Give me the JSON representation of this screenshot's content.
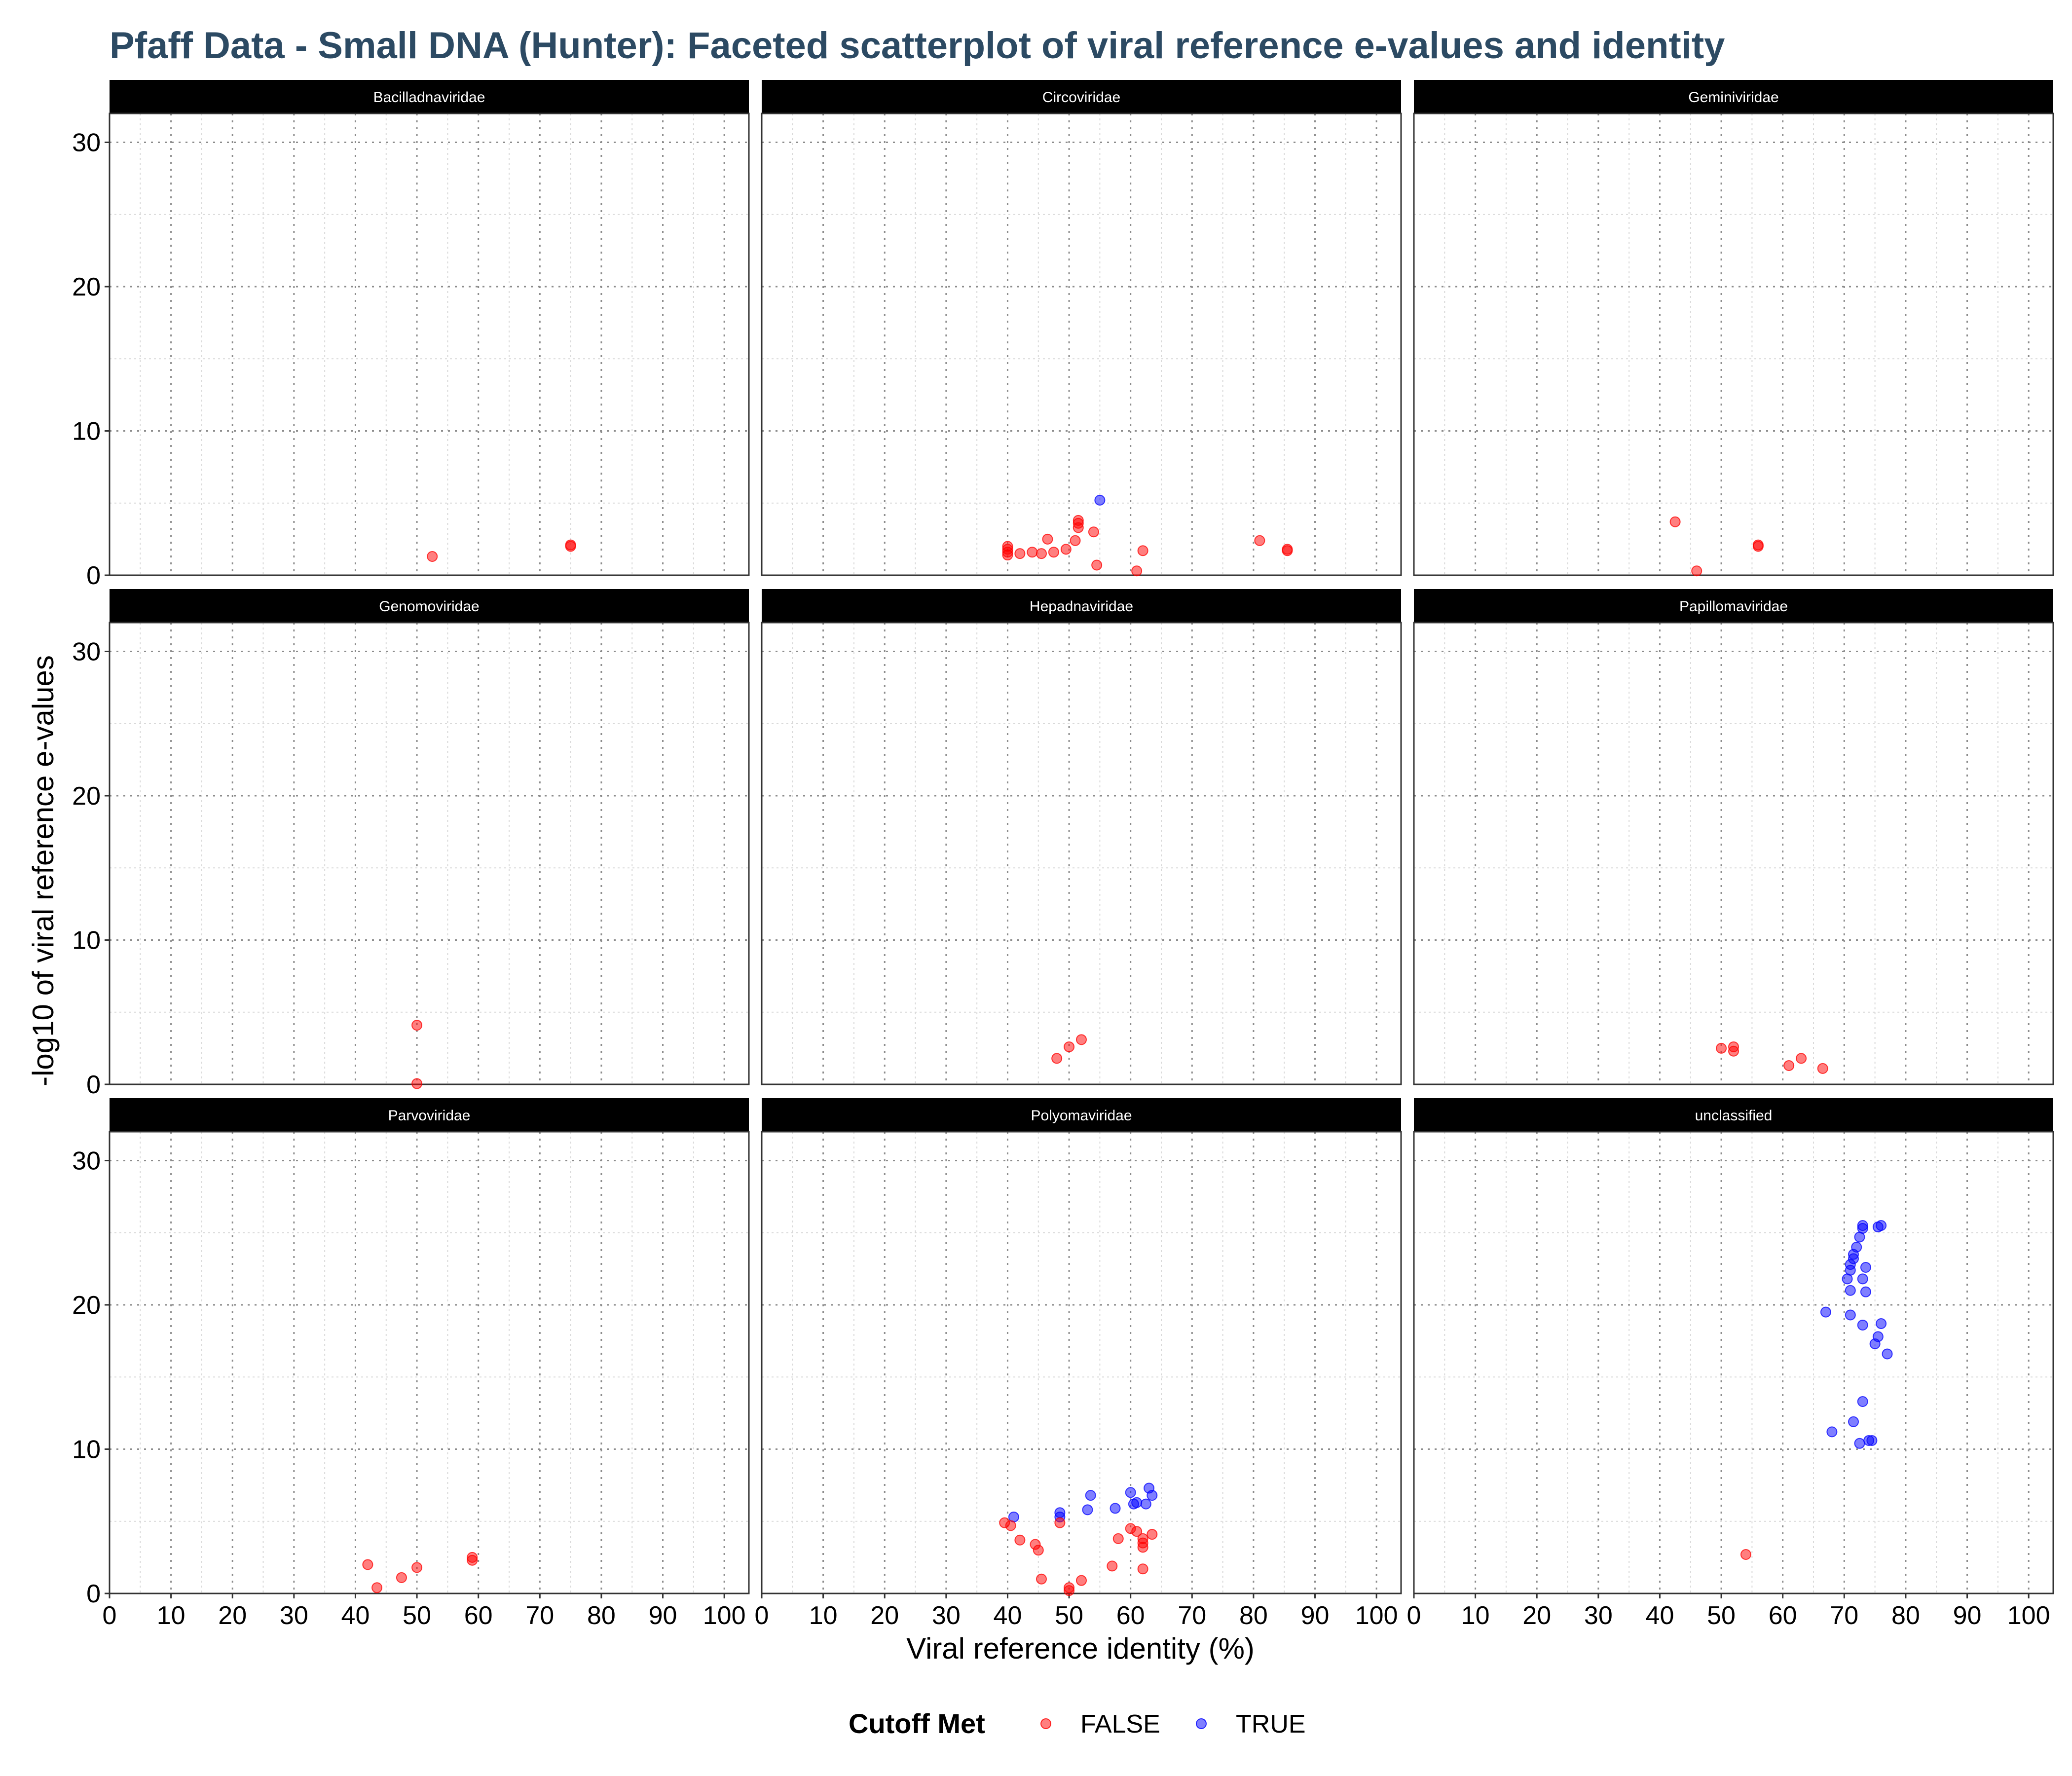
{
  "title": "Pfaff Data - Small DNA (Hunter): Faceted scatterplot of viral reference e-values and identity",
  "chart_data": {
    "type": "scatter",
    "title": "Pfaff Data - Small DNA (Hunter): Faceted scatterplot of viral reference e-values and identity",
    "xlabel": "Viral reference identity (%)",
    "ylabel": "-log10 of viral reference e-values",
    "xlim": [
      0,
      104
    ],
    "ylim": [
      0,
      32
    ],
    "x_ticks": [
      0,
      10,
      20,
      30,
      40,
      50,
      60,
      70,
      80,
      90,
      100
    ],
    "y_ticks": [
      0,
      10,
      20,
      30
    ],
    "grid": true,
    "legend": {
      "title": "Cutoff Met",
      "position": "bottom",
      "entries": [
        {
          "label": "FALSE",
          "color": "#ff0000"
        },
        {
          "label": "TRUE",
          "color": "#0000ff"
        }
      ]
    },
    "colors": {
      "FALSE": "#ff0000",
      "TRUE": "#0000ff"
    },
    "facets": [
      {
        "name": "Bacilladnaviridae",
        "points": [
          {
            "x": 52.5,
            "y": 1.3,
            "cutoff": "FALSE"
          },
          {
            "x": 75,
            "y": 2.1,
            "cutoff": "FALSE"
          },
          {
            "x": 75,
            "y": 2.0,
            "cutoff": "FALSE"
          }
        ]
      },
      {
        "name": "Circoviridae",
        "points": [
          {
            "x": 55,
            "y": 5.2,
            "cutoff": "TRUE"
          },
          {
            "x": 40,
            "y": 2.0,
            "cutoff": "FALSE"
          },
          {
            "x": 40,
            "y": 1.8,
            "cutoff": "FALSE"
          },
          {
            "x": 40,
            "y": 1.6,
            "cutoff": "FALSE"
          },
          {
            "x": 40,
            "y": 1.4,
            "cutoff": "FALSE"
          },
          {
            "x": 42,
            "y": 1.5,
            "cutoff": "FALSE"
          },
          {
            "x": 44,
            "y": 1.6,
            "cutoff": "FALSE"
          },
          {
            "x": 45.5,
            "y": 1.5,
            "cutoff": "FALSE"
          },
          {
            "x": 46.5,
            "y": 2.5,
            "cutoff": "FALSE"
          },
          {
            "x": 47.5,
            "y": 1.6,
            "cutoff": "FALSE"
          },
          {
            "x": 49.5,
            "y": 1.8,
            "cutoff": "FALSE"
          },
          {
            "x": 51,
            "y": 2.4,
            "cutoff": "FALSE"
          },
          {
            "x": 51.5,
            "y": 3.3,
            "cutoff": "FALSE"
          },
          {
            "x": 51.5,
            "y": 3.6,
            "cutoff": "FALSE"
          },
          {
            "x": 51.5,
            "y": 3.8,
            "cutoff": "FALSE"
          },
          {
            "x": 54,
            "y": 3.0,
            "cutoff": "FALSE"
          },
          {
            "x": 54.5,
            "y": 0.7,
            "cutoff": "FALSE"
          },
          {
            "x": 61,
            "y": 0.3,
            "cutoff": "FALSE"
          },
          {
            "x": 62,
            "y": 1.7,
            "cutoff": "FALSE"
          },
          {
            "x": 81,
            "y": 2.4,
            "cutoff": "FALSE"
          },
          {
            "x": 85.5,
            "y": 1.8,
            "cutoff": "FALSE"
          },
          {
            "x": 85.5,
            "y": 1.7,
            "cutoff": "FALSE"
          }
        ]
      },
      {
        "name": "Geminiviridae",
        "points": [
          {
            "x": 42.5,
            "y": 3.7,
            "cutoff": "FALSE"
          },
          {
            "x": 46,
            "y": 0.3,
            "cutoff": "FALSE"
          },
          {
            "x": 56,
            "y": 2.1,
            "cutoff": "FALSE"
          },
          {
            "x": 56,
            "y": 2.0,
            "cutoff": "FALSE"
          }
        ]
      },
      {
        "name": "Genomoviridae",
        "points": [
          {
            "x": 50,
            "y": 4.1,
            "cutoff": "FALSE"
          },
          {
            "x": 50,
            "y": 0.05,
            "cutoff": "FALSE"
          }
        ]
      },
      {
        "name": "Hepadnaviridae",
        "points": [
          {
            "x": 48,
            "y": 1.8,
            "cutoff": "FALSE"
          },
          {
            "x": 50,
            "y": 2.6,
            "cutoff": "FALSE"
          },
          {
            "x": 52,
            "y": 3.1,
            "cutoff": "FALSE"
          }
        ]
      },
      {
        "name": "Papillomaviridae",
        "points": [
          {
            "x": 50,
            "y": 2.5,
            "cutoff": "FALSE"
          },
          {
            "x": 52,
            "y": 2.6,
            "cutoff": "FALSE"
          },
          {
            "x": 52,
            "y": 2.3,
            "cutoff": "FALSE"
          },
          {
            "x": 61,
            "y": 1.3,
            "cutoff": "FALSE"
          },
          {
            "x": 63,
            "y": 1.8,
            "cutoff": "FALSE"
          },
          {
            "x": 66.5,
            "y": 1.1,
            "cutoff": "FALSE"
          }
        ]
      },
      {
        "name": "Parvoviridae",
        "points": [
          {
            "x": 42,
            "y": 2.0,
            "cutoff": "FALSE"
          },
          {
            "x": 43.5,
            "y": 0.4,
            "cutoff": "FALSE"
          },
          {
            "x": 47.5,
            "y": 1.1,
            "cutoff": "FALSE"
          },
          {
            "x": 50,
            "y": 1.8,
            "cutoff": "FALSE"
          },
          {
            "x": 59,
            "y": 2.5,
            "cutoff": "FALSE"
          },
          {
            "x": 59,
            "y": 2.3,
            "cutoff": "FALSE"
          }
        ]
      },
      {
        "name": "Polyomaviridae",
        "points": [
          {
            "x": 41,
            "y": 5.3,
            "cutoff": "TRUE"
          },
          {
            "x": 48.5,
            "y": 5.6,
            "cutoff": "TRUE"
          },
          {
            "x": 48.5,
            "y": 5.3,
            "cutoff": "TRUE"
          },
          {
            "x": 53,
            "y": 5.8,
            "cutoff": "TRUE"
          },
          {
            "x": 53.5,
            "y": 6.8,
            "cutoff": "TRUE"
          },
          {
            "x": 57.5,
            "y": 5.9,
            "cutoff": "TRUE"
          },
          {
            "x": 60,
            "y": 7.0,
            "cutoff": "TRUE"
          },
          {
            "x": 60.5,
            "y": 6.2,
            "cutoff": "TRUE"
          },
          {
            "x": 61,
            "y": 6.3,
            "cutoff": "TRUE"
          },
          {
            "x": 62.5,
            "y": 6.2,
            "cutoff": "TRUE"
          },
          {
            "x": 63,
            "y": 7.3,
            "cutoff": "TRUE"
          },
          {
            "x": 63.5,
            "y": 6.8,
            "cutoff": "TRUE"
          },
          {
            "x": 39.5,
            "y": 4.9,
            "cutoff": "FALSE"
          },
          {
            "x": 40.5,
            "y": 4.7,
            "cutoff": "FALSE"
          },
          {
            "x": 42,
            "y": 3.7,
            "cutoff": "FALSE"
          },
          {
            "x": 44.5,
            "y": 3.4,
            "cutoff": "FALSE"
          },
          {
            "x": 45,
            "y": 3.0,
            "cutoff": "FALSE"
          },
          {
            "x": 45.5,
            "y": 1.0,
            "cutoff": "FALSE"
          },
          {
            "x": 48.5,
            "y": 4.9,
            "cutoff": "FALSE"
          },
          {
            "x": 50,
            "y": 0.4,
            "cutoff": "FALSE"
          },
          {
            "x": 50,
            "y": 0.2,
            "cutoff": "FALSE"
          },
          {
            "x": 52,
            "y": 0.9,
            "cutoff": "FALSE"
          },
          {
            "x": 57,
            "y": 1.9,
            "cutoff": "FALSE"
          },
          {
            "x": 58,
            "y": 3.8,
            "cutoff": "FALSE"
          },
          {
            "x": 60,
            "y": 4.5,
            "cutoff": "FALSE"
          },
          {
            "x": 61,
            "y": 4.3,
            "cutoff": "FALSE"
          },
          {
            "x": 62,
            "y": 3.8,
            "cutoff": "FALSE"
          },
          {
            "x": 62,
            "y": 3.5,
            "cutoff": "FALSE"
          },
          {
            "x": 62,
            "y": 3.2,
            "cutoff": "FALSE"
          },
          {
            "x": 62,
            "y": 1.7,
            "cutoff": "FALSE"
          },
          {
            "x": 63.5,
            "y": 4.1,
            "cutoff": "FALSE"
          }
        ]
      },
      {
        "name": "unclassified",
        "points": [
          {
            "x": 73,
            "y": 25.5,
            "cutoff": "TRUE"
          },
          {
            "x": 73,
            "y": 25.3,
            "cutoff": "TRUE"
          },
          {
            "x": 75.5,
            "y": 25.4,
            "cutoff": "TRUE"
          },
          {
            "x": 76,
            "y": 25.5,
            "cutoff": "TRUE"
          },
          {
            "x": 72.5,
            "y": 24.7,
            "cutoff": "TRUE"
          },
          {
            "x": 72,
            "y": 24.0,
            "cutoff": "TRUE"
          },
          {
            "x": 71.5,
            "y": 23.5,
            "cutoff": "TRUE"
          },
          {
            "x": 71.5,
            "y": 23.2,
            "cutoff": "TRUE"
          },
          {
            "x": 71,
            "y": 22.8,
            "cutoff": "TRUE"
          },
          {
            "x": 71,
            "y": 22.4,
            "cutoff": "TRUE"
          },
          {
            "x": 70.5,
            "y": 21.8,
            "cutoff": "TRUE"
          },
          {
            "x": 71,
            "y": 21.0,
            "cutoff": "TRUE"
          },
          {
            "x": 73.5,
            "y": 22.6,
            "cutoff": "TRUE"
          },
          {
            "x": 73,
            "y": 21.8,
            "cutoff": "TRUE"
          },
          {
            "x": 73.5,
            "y": 20.9,
            "cutoff": "TRUE"
          },
          {
            "x": 67,
            "y": 19.5,
            "cutoff": "TRUE"
          },
          {
            "x": 71,
            "y": 19.3,
            "cutoff": "TRUE"
          },
          {
            "x": 73,
            "y": 18.6,
            "cutoff": "TRUE"
          },
          {
            "x": 76,
            "y": 18.7,
            "cutoff": "TRUE"
          },
          {
            "x": 75.5,
            "y": 17.8,
            "cutoff": "TRUE"
          },
          {
            "x": 75,
            "y": 17.3,
            "cutoff": "TRUE"
          },
          {
            "x": 77,
            "y": 16.6,
            "cutoff": "TRUE"
          },
          {
            "x": 73,
            "y": 13.3,
            "cutoff": "TRUE"
          },
          {
            "x": 71.5,
            "y": 11.9,
            "cutoff": "TRUE"
          },
          {
            "x": 68,
            "y": 11.2,
            "cutoff": "TRUE"
          },
          {
            "x": 72.5,
            "y": 10.4,
            "cutoff": "TRUE"
          },
          {
            "x": 74,
            "y": 10.6,
            "cutoff": "TRUE"
          },
          {
            "x": 74.5,
            "y": 10.6,
            "cutoff": "TRUE"
          },
          {
            "x": 54,
            "y": 2.7,
            "cutoff": "FALSE"
          }
        ]
      }
    ]
  }
}
